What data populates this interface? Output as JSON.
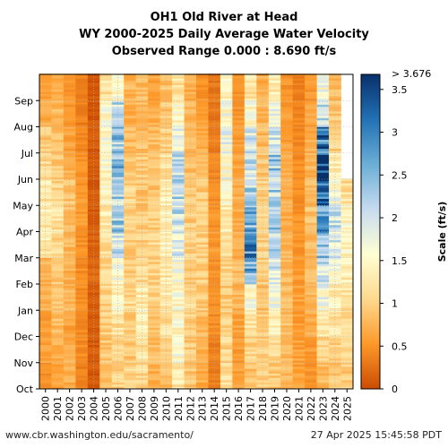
{
  "chart_data": {
    "type": "heatmap",
    "title": [
      "OH1 Old River at Head",
      "WY 2000-2025 Daily Average Water Velocity",
      "Observed Range 0.000 : 8.690 ft/s"
    ],
    "x_labels": [
      "2000",
      "2001",
      "2002",
      "2003",
      "2004",
      "2005",
      "2006",
      "2007",
      "2008",
      "2009",
      "2010",
      "2011",
      "2012",
      "2013",
      "2014",
      "2015",
      "2016",
      "2017",
      "2018",
      "2019",
      "2020",
      "2021",
      "2022",
      "2023",
      "2024",
      "2025"
    ],
    "y_labels": [
      "Oct",
      "Nov",
      "Dec",
      "Jan",
      "Feb",
      "Mar",
      "Apr",
      "May",
      "Jun",
      "Jul",
      "Aug",
      "Sep"
    ],
    "colorbar": {
      "label": "Scale (ft/s)",
      "min": 0,
      "max": 3.676,
      "top_label": "> 3.676",
      "ticks": [
        0,
        0.5,
        1,
        1.5,
        2,
        2.5,
        3,
        3.5
      ],
      "tick_labels": [
        "0",
        "0.5",
        "1",
        "1.5",
        "2",
        "2.5",
        "3",
        "3.5"
      ],
      "colors": [
        "#cc4c02",
        "#fe9929",
        "#fed98e",
        "#ffffd4",
        "#c6dbef",
        "#6baed6",
        "#2171b5",
        "#08306b"
      ]
    },
    "monthly_mean_velocity_ftps": [
      [
        0.45,
        0.6,
        0.55,
        0.7,
        0.75,
        1.3,
        1.3,
        1.25,
        1.1,
        0.95,
        0.7,
        0.6
      ],
      [
        0.6,
        0.75,
        0.8,
        0.9,
        0.95,
        1.05,
        1.15,
        1.05,
        0.9,
        0.85,
        0.8,
        0.7
      ],
      [
        0.7,
        0.7,
        0.6,
        0.75,
        0.7,
        0.8,
        0.85,
        0.9,
        0.75,
        0.6,
        0.55,
        0.5
      ],
      [
        0.35,
        0.45,
        0.4,
        0.45,
        0.45,
        0.5,
        0.55,
        0.55,
        0.5,
        0.4,
        0.35,
        0.35
      ],
      [
        0.1,
        0.1,
        0.1,
        0.1,
        0.2,
        0.15,
        0.1,
        0.1,
        0.1,
        0.1,
        0.1,
        0.1
      ],
      [
        0.85,
        0.9,
        1.0,
        1.05,
        1.1,
        1.2,
        1.3,
        1.4,
        1.5,
        1.6,
        1.5,
        1.2
      ],
      [
        1.05,
        1.1,
        1.2,
        1.4,
        1.55,
        2.0,
        2.3,
        2.2,
        2.5,
        2.4,
        2.1,
        1.5
      ],
      [
        1.05,
        0.9,
        0.95,
        1.1,
        0.95,
        0.9,
        1.0,
        1.05,
        0.85,
        0.8,
        0.7,
        0.75
      ],
      [
        1.1,
        1.2,
        1.45,
        1.3,
        1.1,
        1.0,
        0.95,
        0.9,
        1.0,
        0.85,
        0.8,
        0.8
      ],
      [
        0.7,
        0.8,
        0.9,
        1.0,
        1.0,
        1.05,
        1.0,
        0.9,
        0.85,
        0.8,
        0.7,
        0.6
      ],
      [
        0.8,
        1.0,
        1.2,
        1.25,
        1.3,
        1.35,
        1.4,
        1.3,
        1.2,
        1.0,
        0.9,
        0.85
      ],
      [
        1.25,
        1.5,
        1.45,
        1.5,
        1.65,
        1.85,
        2.1,
        2.2,
        2.0,
        1.8,
        1.45,
        1.2
      ],
      [
        0.9,
        0.95,
        1.0,
        1.1,
        1.0,
        0.95,
        0.95,
        0.9,
        0.85,
        0.8,
        0.75,
        0.7
      ],
      [
        0.7,
        0.75,
        0.8,
        0.9,
        1.0,
        1.0,
        1.05,
        0.95,
        0.8,
        0.7,
        0.6,
        0.5
      ],
      [
        0.35,
        0.35,
        0.45,
        0.45,
        0.5,
        0.55,
        0.5,
        0.45,
        0.4,
        0.35,
        0.3,
        0.3
      ],
      [
        1.15,
        1.05,
        1.0,
        0.95,
        1.0,
        1.1,
        1.3,
        1.5,
        1.6,
        1.7,
        1.6,
        1.4
      ],
      [
        0.6,
        0.55,
        0.6,
        0.75,
        0.8,
        0.7,
        0.65,
        0.7,
        0.6,
        0.55,
        0.5,
        0.45
      ],
      [
        0.85,
        1.0,
        1.2,
        1.6,
        2.6,
        2.9,
        2.6,
        2.2,
        2.0,
        1.9,
        1.5,
        1.2
      ],
      [
        1.05,
        0.95,
        0.9,
        0.85,
        0.95,
        1.0,
        1.1,
        1.0,
        0.9,
        0.8,
        0.75,
        0.7
      ],
      [
        0.9,
        1.05,
        1.35,
        1.6,
        1.9,
        2.1,
        2.3,
        2.2,
        2.3,
        2.1,
        1.8,
        1.3
      ],
      [
        0.8,
        0.75,
        0.8,
        0.85,
        0.8,
        0.75,
        0.7,
        0.7,
        0.65,
        0.6,
        0.55,
        0.5
      ],
      [
        0.6,
        0.6,
        0.55,
        0.6,
        0.55,
        0.5,
        0.5,
        0.45,
        0.45,
        0.4,
        0.4,
        0.35
      ],
      [
        0.5,
        0.55,
        0.7,
        0.75,
        0.8,
        0.8,
        0.85,
        0.8,
        0.75,
        0.7,
        0.6,
        0.55
      ],
      [
        0.8,
        1.0,
        1.3,
        1.7,
        2.0,
        2.4,
        2.7,
        3.2,
        3.6,
        3.0,
        2.2,
        1.6
      ],
      [
        0.9,
        1.0,
        1.2,
        1.35,
        1.55,
        1.9,
        2.0,
        1.7,
        1.3,
        1.0,
        0.9,
        0.8
      ],
      [
        0.95,
        1.05,
        1.1,
        1.2,
        1.3,
        1.4,
        1.45,
        1.15
      ]
    ]
  },
  "footer": {
    "url": "www.cbr.washington.edu/sacramento/",
    "timestamp": "27 Apr 2025 15:45:58 PDT"
  }
}
